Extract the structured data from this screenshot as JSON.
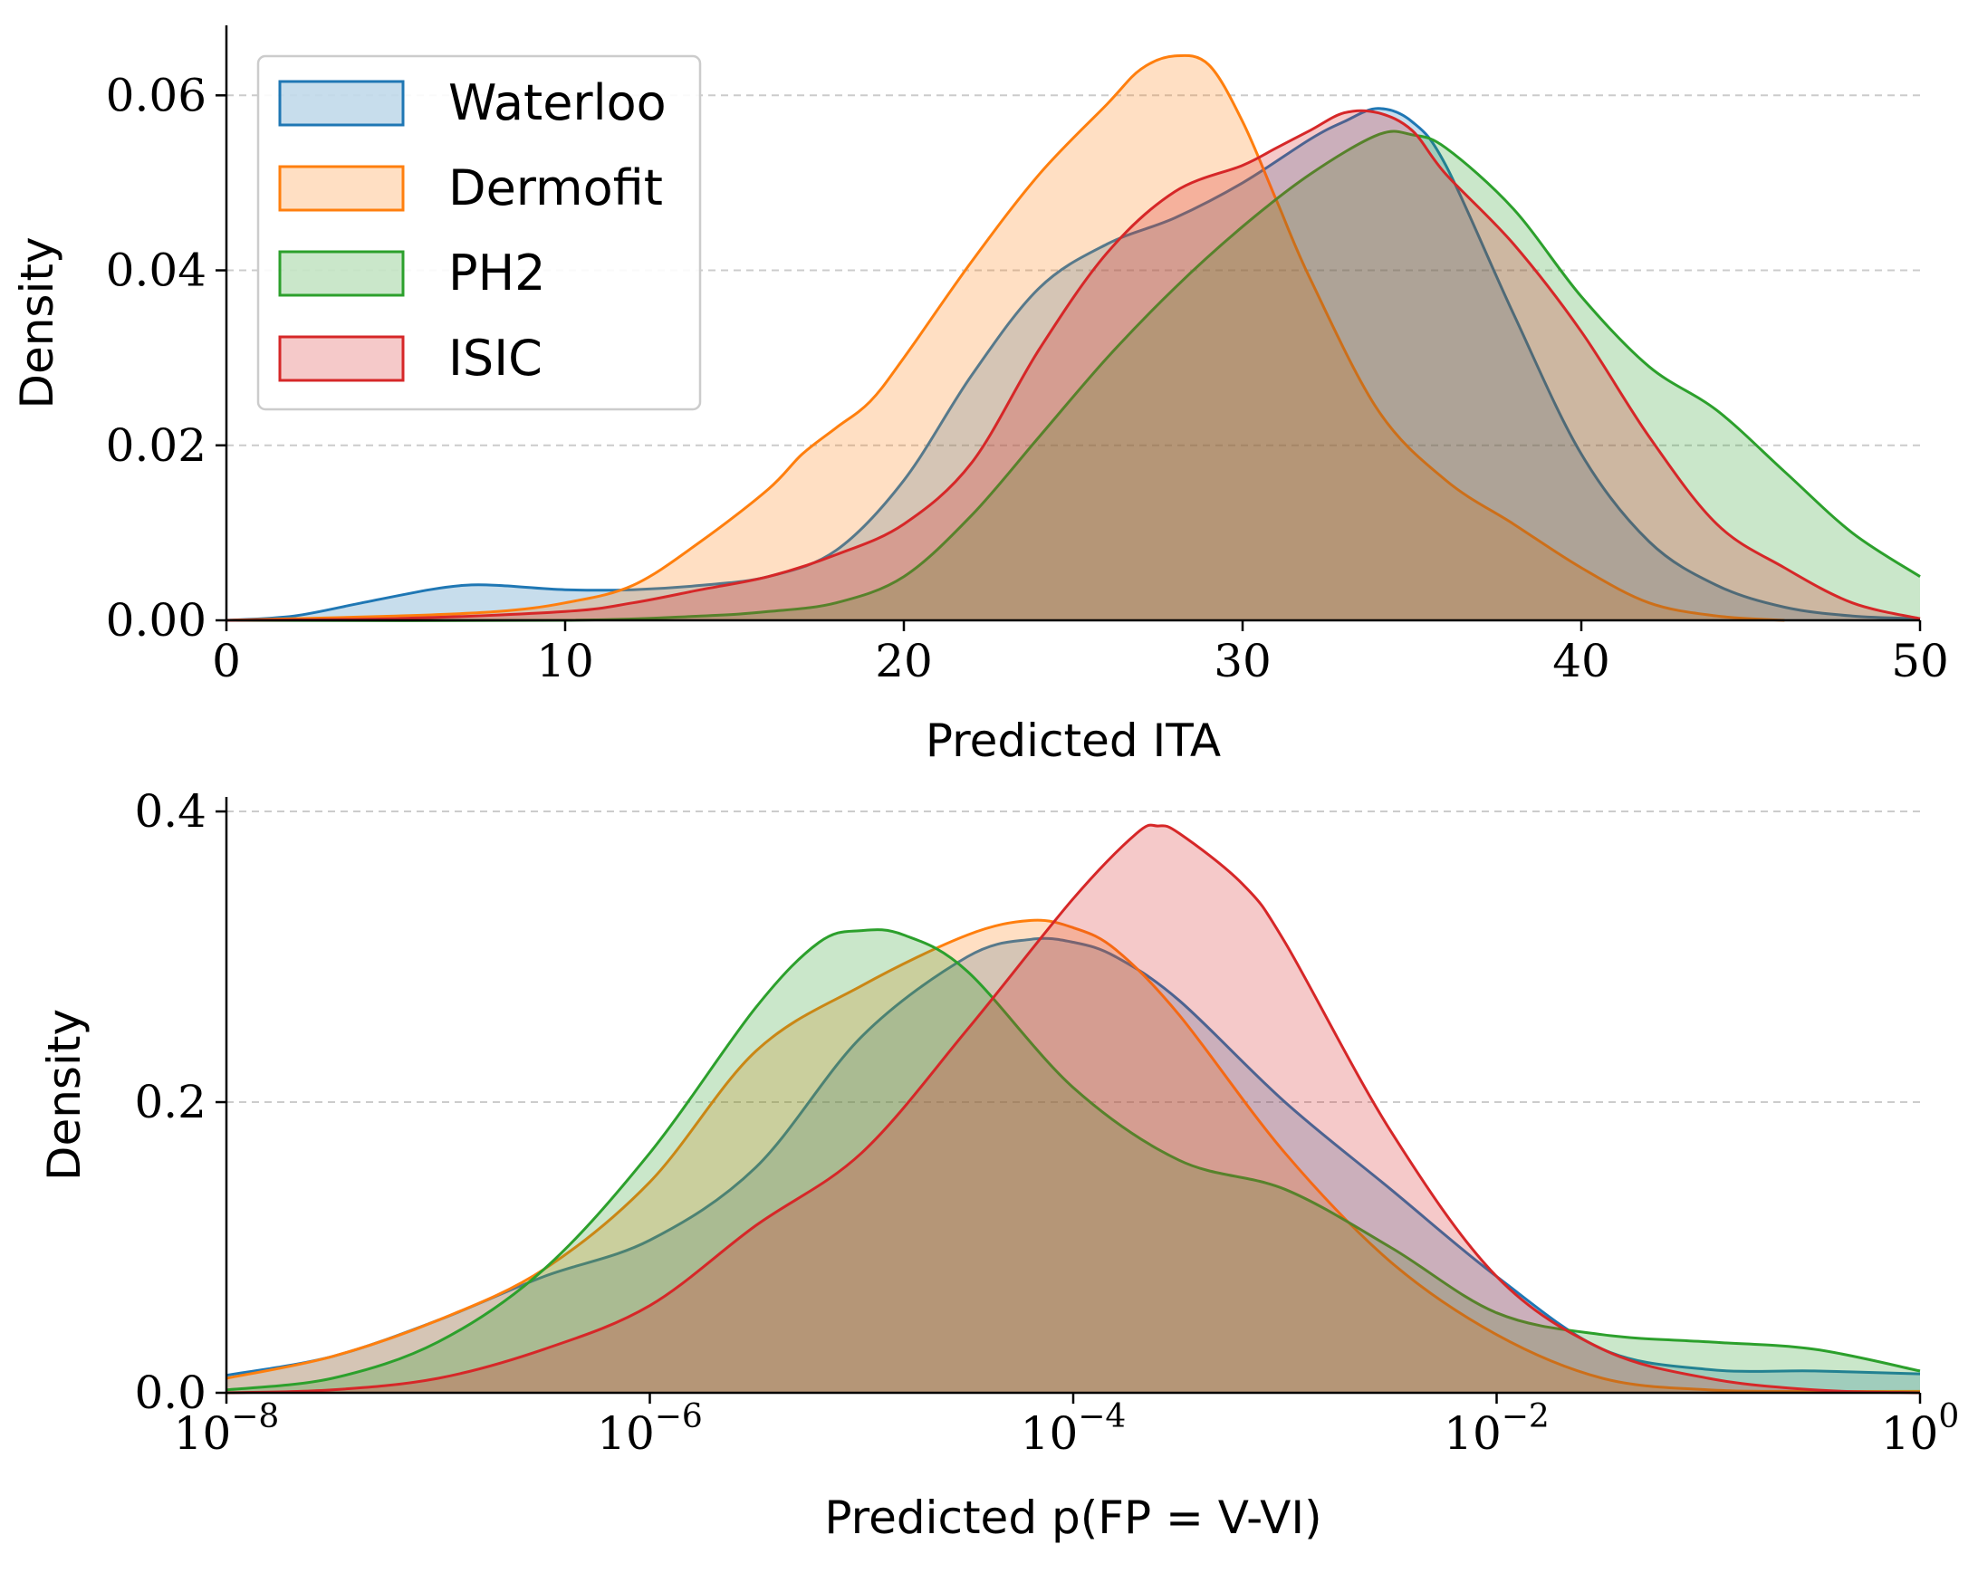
{
  "chart_data": [
    {
      "type": "area",
      "xlabel": "Predicted ITA",
      "ylabel": "Density",
      "xlim": [
        0,
        50
      ],
      "ylim": [
        0,
        0.068
      ],
      "x_scale": "linear",
      "grid": "horizontal-dashed",
      "legend": "top-left",
      "x_ticks": [
        {
          "value": 0,
          "label": "0"
        },
        {
          "value": 10,
          "label": "10"
        },
        {
          "value": 20,
          "label": "20"
        },
        {
          "value": 30,
          "label": "30"
        },
        {
          "value": 40,
          "label": "40"
        },
        {
          "value": 50,
          "label": "50"
        }
      ],
      "y_ticks": [
        {
          "value": 0,
          "label": "0.00"
        },
        {
          "value": 0.02,
          "label": "0.02"
        },
        {
          "value": 0.04,
          "label": "0.04"
        },
        {
          "value": 0.06,
          "label": "0.06"
        }
      ],
      "series": [
        {
          "name": "Waterloo",
          "color": "#1f77b4",
          "x": [
            0,
            2,
            4,
            6,
            7,
            8,
            10,
            12,
            14,
            16,
            18,
            20,
            22,
            24,
            26,
            28,
            30,
            32,
            33,
            34,
            35,
            36,
            38,
            40,
            42,
            44,
            46,
            48,
            50
          ],
          "y": [
            0.0,
            0.0005,
            0.002,
            0.0035,
            0.004,
            0.004,
            0.0035,
            0.0035,
            0.004,
            0.005,
            0.008,
            0.016,
            0.028,
            0.038,
            0.043,
            0.046,
            0.05,
            0.055,
            0.057,
            0.0585,
            0.057,
            0.052,
            0.035,
            0.019,
            0.009,
            0.004,
            0.0015,
            0.0005,
            0.0002
          ]
        },
        {
          "name": "Dermofit",
          "color": "#ff7f0e",
          "x": [
            0,
            5,
            8,
            10,
            12,
            14,
            16,
            17,
            18,
            19,
            20,
            22,
            24,
            26,
            27,
            28,
            29,
            30,
            31,
            32,
            34,
            36,
            38,
            40,
            42,
            44,
            46
          ],
          "y": [
            0.0,
            0.0005,
            0.001,
            0.002,
            0.004,
            0.009,
            0.015,
            0.019,
            0.022,
            0.025,
            0.03,
            0.041,
            0.051,
            0.059,
            0.063,
            0.0645,
            0.0635,
            0.057,
            0.048,
            0.039,
            0.024,
            0.016,
            0.011,
            0.006,
            0.002,
            0.0005,
            0.0
          ]
        },
        {
          "name": "PH2",
          "color": "#2ca02c",
          "x": [
            0,
            10,
            14,
            16,
            18,
            20,
            22,
            24,
            26,
            28,
            30,
            32,
            34,
            35,
            36,
            38,
            40,
            42,
            44,
            46,
            48,
            50
          ],
          "y": [
            0.0,
            0.0,
            0.0005,
            0.001,
            0.002,
            0.005,
            0.012,
            0.021,
            0.03,
            0.038,
            0.045,
            0.051,
            0.0555,
            0.0555,
            0.054,
            0.047,
            0.037,
            0.029,
            0.024,
            0.017,
            0.01,
            0.005
          ]
        },
        {
          "name": "ISIC",
          "color": "#d62728",
          "x": [
            0,
            5,
            10,
            12,
            14,
            16,
            18,
            20,
            22,
            24,
            26,
            28,
            30,
            31,
            32,
            33,
            34,
            35,
            36,
            38,
            40,
            42,
            44,
            46,
            48,
            50
          ],
          "y": [
            0.0,
            0.0002,
            0.001,
            0.002,
            0.0035,
            0.005,
            0.0075,
            0.011,
            0.018,
            0.031,
            0.042,
            0.049,
            0.052,
            0.054,
            0.056,
            0.058,
            0.058,
            0.056,
            0.051,
            0.043,
            0.033,
            0.021,
            0.011,
            0.006,
            0.002,
            0.0002
          ]
        }
      ]
    },
    {
      "type": "area",
      "xlabel": "Predicted p(FP = V-VI)",
      "ylabel": "Density",
      "xlim": [
        -8,
        0
      ],
      "ylim": [
        0,
        0.41
      ],
      "x_scale": "log10",
      "grid": "horizontal-dashed",
      "x_ticks": [
        {
          "value": -8,
          "base": "10",
          "exp": "−8"
        },
        {
          "value": -6,
          "base": "10",
          "exp": "−6"
        },
        {
          "value": -4,
          "base": "10",
          "exp": "−4"
        },
        {
          "value": -2,
          "base": "10",
          "exp": "−2"
        },
        {
          "value": 0,
          "base": "10",
          "exp": "0"
        }
      ],
      "y_ticks": [
        {
          "value": 0,
          "label": "0.0"
        },
        {
          "value": 0.2,
          "label": "0.2"
        },
        {
          "value": 0.4,
          "label": "0.4"
        }
      ],
      "series": [
        {
          "name": "Waterloo",
          "color": "#1f77b4",
          "x": [
            -8,
            -7.5,
            -7,
            -6.5,
            -6,
            -5.5,
            -5,
            -4.5,
            -4.2,
            -4,
            -3.8,
            -3.5,
            -3,
            -2.5,
            -2,
            -1.5,
            -1,
            -0.5,
            0
          ],
          "y": [
            0.012,
            0.025,
            0.05,
            0.08,
            0.105,
            0.155,
            0.245,
            0.3,
            0.312,
            0.31,
            0.3,
            0.27,
            0.2,
            0.14,
            0.08,
            0.03,
            0.016,
            0.015,
            0.013
          ]
        },
        {
          "name": "Dermofit",
          "color": "#ff7f0e",
          "x": [
            -8,
            -7.5,
            -7,
            -6.5,
            -6,
            -5.5,
            -5,
            -4.5,
            -4.2,
            -4,
            -3.8,
            -3.5,
            -3,
            -2.5,
            -2,
            -1.5,
            -1,
            -0.5,
            0
          ],
          "y": [
            0.01,
            0.025,
            0.05,
            0.085,
            0.145,
            0.235,
            0.28,
            0.315,
            0.325,
            0.32,
            0.305,
            0.26,
            0.165,
            0.09,
            0.04,
            0.01,
            0.002,
            0.001,
            0.001
          ]
        },
        {
          "name": "PH2",
          "color": "#2ca02c",
          "x": [
            -8,
            -7.5,
            -7,
            -6.5,
            -6,
            -5.5,
            -5.2,
            -5,
            -4.8,
            -4.5,
            -4,
            -3.5,
            -3,
            -2.5,
            -2,
            -1.5,
            -1,
            -0.5,
            0
          ],
          "y": [
            0.002,
            0.01,
            0.035,
            0.085,
            0.165,
            0.265,
            0.31,
            0.318,
            0.315,
            0.29,
            0.21,
            0.16,
            0.14,
            0.1,
            0.055,
            0.04,
            0.035,
            0.03,
            0.015
          ]
        },
        {
          "name": "ISIC",
          "color": "#d62728",
          "x": [
            -8,
            -7.5,
            -7,
            -6.5,
            -6,
            -5.5,
            -5,
            -4.5,
            -4,
            -3.7,
            -3.6,
            -3.5,
            -3.2,
            -3,
            -2.5,
            -2,
            -1.5,
            -1,
            -0.5,
            0
          ],
          "y": [
            0.0,
            0.002,
            0.01,
            0.03,
            0.06,
            0.115,
            0.165,
            0.25,
            0.34,
            0.385,
            0.39,
            0.385,
            0.35,
            0.31,
            0.18,
            0.08,
            0.03,
            0.01,
            0.002,
            0.0
          ]
        }
      ]
    }
  ]
}
